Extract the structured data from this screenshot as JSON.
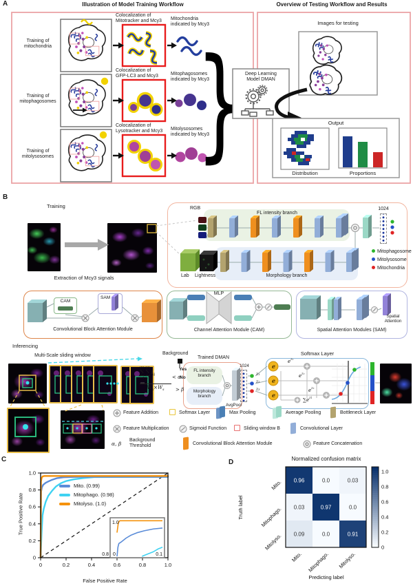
{
  "panels": {
    "a": "A",
    "b": "B",
    "c": "C",
    "d": "D"
  },
  "glyphs": {
    "brace": "}"
  },
  "colors": {
    "panel_border_pink": "#eba3a6",
    "red_box": "#e81c1c",
    "conv_layer": "#92aed8",
    "cbam_layer": "#ef8f1f",
    "bottleneck_layer": "#b3a36e",
    "avg_pool": "#9bd8c6",
    "max_pool": "#4a7fb5",
    "softmax_box": "#e8c53a",
    "sliding_window": "#e87070",
    "class_green": "#2db52d",
    "class_blue": "#2451c8",
    "class_red": "#e02424",
    "roc_blue": "#5b8cd8",
    "roc_cyan": "#3fd2f2",
    "roc_orange": "#f5920b",
    "bar_navy": "#1f3d8c",
    "bar_green": "#1f8c45",
    "bar_red": "#cc2626"
  },
  "panelA": {
    "left_title": "Illustration of Model Training Workflow",
    "right_title": "Overview of Testing Workflow and Results",
    "rows": [
      {
        "training": "Training of\nmitochondria",
        "coloc": "Colocalization of\nMitotracker and Mcy3",
        "result": "Mitochondria\nindicated by Mcy3"
      },
      {
        "training": "Training of\nmitophagosomes",
        "coloc": "Colocalization of\nGFP-LC3 and Mcy3",
        "result": "Mitophagosomes\nindicated by Mcy3"
      },
      {
        "training": "Training of\nmitolysosomes",
        "coloc": "Colocalization of\nLysotracker and Mcy3",
        "result": "Mitolysosomes\nindicated by Mcy3"
      }
    ],
    "dman_label": "Deep Learning\nModel DMAN",
    "testing_title": "Images for testing",
    "output_title": "Output",
    "distribution_label": "Distribution",
    "proportions_label": "Proportions"
  },
  "panelB": {
    "training_label": "Training",
    "extraction_label": "Extraction of Mcy3 signals",
    "rgb_label": "RGB",
    "fl_branch_label": "FL intensity branch",
    "vector_label": "1024",
    "lab_label": "Lab",
    "lightness_label": "Lightness",
    "morphology_label": "Morphology branch",
    "fl_layers": [
      "bottleneck",
      "conv",
      "cbam",
      "conv",
      "cbam",
      "conv",
      "conv2"
    ],
    "morph_layers": [
      "bottleneck",
      "conv",
      "cbam",
      "conv",
      "cbam",
      "conv",
      "conv2"
    ],
    "class_legend": [
      {
        "label": "Mitophagosome",
        "color": "#2db52d"
      },
      {
        "label": "Mitolysosome",
        "color": "#2451c8"
      },
      {
        "label": "Mitochondria",
        "color": "#e02424"
      }
    ],
    "cbam": {
      "title": "Convolutional Block Attention Module",
      "cam": "CAM",
      "sam": "SAM"
    },
    "cam_module": {
      "title": "Channel Attention Module (CAM)",
      "mlp": "MLP"
    },
    "sam_module": {
      "title": "Spatial Attention Modules (SAM)",
      "spatial": "Spatial\nAttention"
    },
    "inferencing_label": "Inferencing",
    "sliding_label": "Multi-Scale sliding window",
    "background_label": "Background",
    "formula": {
      "sum": "∑",
      "ws_tiny": "Ws",
      "i1": "i=1",
      "j1": "j=1",
      "I": "I",
      "ij": "ij",
      "W": "W",
      "s": "s",
      "times": "×",
      "lt": "< α",
      "yes": "Yes",
      "no": "No",
      "gt": "> β"
    },
    "trained_dman": {
      "title": "Trained DMAN",
      "fl": "FL intensity\nbranch",
      "morph": "Morphology\nbranch",
      "avgpool": "AvgPool",
      "vector": "1024",
      "z1": "z₁",
      "z2": "z₂",
      "z3": "z₃"
    },
    "softmax": {
      "title": "Softmax Layer",
      "e": "e",
      "z1": "z₁",
      "z2": "z₂",
      "z3": "z₃",
      "sum": "∑",
      "zi": "zi"
    },
    "legend_rows": [
      [
        {
          "icon": "feature-addition-icon",
          "label": "Feature Addition"
        },
        {
          "icon": "softmax-layer-icon",
          "label": "Softmax Layer"
        },
        {
          "icon": "max-pooling-icon",
          "label": "Max Pooling"
        },
        {
          "icon": "average-pooling-icon",
          "label": "Average Pooling"
        },
        {
          "icon": "bottleneck-layer-icon",
          "label": "Bottleneck Layer"
        }
      ],
      [
        {
          "icon": "feature-multiplication-icon",
          "label": "Feature Multiplication"
        },
        {
          "icon": "sigmoid-function-icon",
          "label": "Sigmoid Function"
        },
        {
          "icon": "sliding-window-icon",
          "label": "Sliding window B"
        },
        {
          "icon": "convolutional-layer-icon",
          "label": "Convolutional Layer"
        }
      ],
      [
        {
          "icon": "alpha-beta",
          "prefix": "α, β",
          "label": "Background\nThreshold"
        },
        {
          "icon": "cbam-layer-icon",
          "label": "Convolutional Block Attention Module"
        },
        {
          "icon": "feature-concatenation-icon",
          "label": "Feature Concatenation"
        }
      ]
    ]
  },
  "chart_data": [
    {
      "type": "line",
      "subtype": "roc",
      "title": "",
      "xlabel": "False Positive Rate",
      "ylabel": "True Positive Rate",
      "xlim": [
        0,
        1
      ],
      "ylim": [
        0,
        1
      ],
      "grid": false,
      "legend_position": "upper-left",
      "xticks": [
        "0",
        "0.2",
        "0.4",
        "0.6",
        "0.8",
        "1.0"
      ],
      "xtick_vals": [
        0,
        0.2,
        0.4,
        0.6,
        0.8,
        1
      ],
      "yticks": [
        "1.0",
        "0.8",
        "0.6",
        "0.4",
        "0.2",
        "0"
      ],
      "ytick_vals": [
        1,
        0.8,
        0.6,
        0.4,
        0.2,
        0
      ],
      "diagonal": true,
      "series": [
        {
          "name": "Mito. (0.99)",
          "auc": 0.99,
          "color": "#5b8cd8",
          "points": [
            [
              0,
              0
            ],
            [
              0.004,
              0.78
            ],
            [
              0.01,
              0.83
            ],
            [
              0.02,
              0.86
            ],
            [
              0.04,
              0.885
            ],
            [
              0.06,
              0.9
            ],
            [
              0.09,
              0.92
            ],
            [
              0.13,
              0.94
            ],
            [
              0.18,
              0.95
            ],
            [
              0.3,
              0.955
            ],
            [
              1,
              0.955
            ]
          ]
        },
        {
          "name": "Mitophago. (0.98)",
          "auc": 0.98,
          "color": "#3fd2f2",
          "points": [
            [
              0,
              0
            ],
            [
              0.008,
              0.3
            ],
            [
              0.015,
              0.5
            ],
            [
              0.025,
              0.58
            ],
            [
              0.04,
              0.66
            ],
            [
              0.06,
              0.73
            ],
            [
              0.09,
              0.79
            ],
            [
              0.12,
              0.84
            ],
            [
              0.16,
              0.88
            ],
            [
              0.2,
              0.905
            ],
            [
              0.26,
              0.925
            ],
            [
              0.33,
              0.94
            ],
            [
              0.42,
              0.952
            ],
            [
              1,
              0.955
            ]
          ]
        },
        {
          "name": "Mitolyso. (1.0)",
          "auc": 1.0,
          "color": "#f5920b",
          "points": [
            [
              0,
              0
            ],
            [
              0.003,
              0.9
            ],
            [
              0.008,
              0.94
            ],
            [
              0.015,
              0.96
            ],
            [
              0.03,
              0.965
            ],
            [
              1,
              0.965
            ]
          ]
        }
      ],
      "inset": {
        "xlim": [
          0,
          0.1
        ],
        "ylim": [
          0.8,
          1.0
        ],
        "labels": {
          "top_left": "1.0",
          "bottom_left": "0.8",
          "bottom_zero": "0",
          "bottom_right": "0.1"
        },
        "series": [
          {
            "color": "#3fd2f2",
            "points": [
              [
                0.055,
                0.8
              ],
              [
                0.06,
                0.805
              ],
              [
                0.07,
                0.815
              ],
              [
                0.08,
                0.825
              ],
              [
                0.09,
                0.84
              ],
              [
                0.1,
                0.85
              ]
            ]
          },
          {
            "color": "#5b8cd8",
            "points": [
              [
                0,
                0.8
              ],
              [
                0.002,
                0.85
              ],
              [
                0.004,
                0.87
              ],
              [
                0.01,
                0.88
              ],
              [
                0.02,
                0.9
              ],
              [
                0.03,
                0.915
              ],
              [
                0.045,
                0.93
              ],
              [
                0.06,
                0.94
              ],
              [
                0.08,
                0.95
              ],
              [
                0.1,
                0.955
              ]
            ]
          },
          {
            "color": "#f5920b",
            "points": [
              [
                0,
                0.93
              ],
              [
                0.003,
                0.985
              ],
              [
                0.006,
                0.995
              ],
              [
                0.1,
                0.995
              ]
            ]
          }
        ]
      }
    },
    {
      "type": "heatmap",
      "title": "Normalized confusion matrix",
      "xlabel": "Predicting label",
      "ylabel": "Truth label",
      "rows": [
        "Mito.",
        "Mitophago.",
        "Mitolyso."
      ],
      "cols": [
        "Mito.",
        "Mitophago.",
        "Mitolyso."
      ],
      "values": [
        [
          0.96,
          0.0,
          0.03
        ],
        [
          0.03,
          0.97,
          0.0
        ],
        [
          0.09,
          0.0,
          0.91
        ]
      ],
      "display": [
        [
          "0.96",
          "0.0",
          "0.03"
        ],
        [
          "0.03",
          "0.97",
          "0.0"
        ],
        [
          "0.09",
          "0.0",
          "0.91"
        ]
      ],
      "colorbar_ticks": [
        "1.0",
        "0.8",
        "0.6",
        "0.4",
        "0.2",
        "0"
      ],
      "cmap": [
        "#f7fbff",
        "#08306b"
      ]
    }
  ]
}
